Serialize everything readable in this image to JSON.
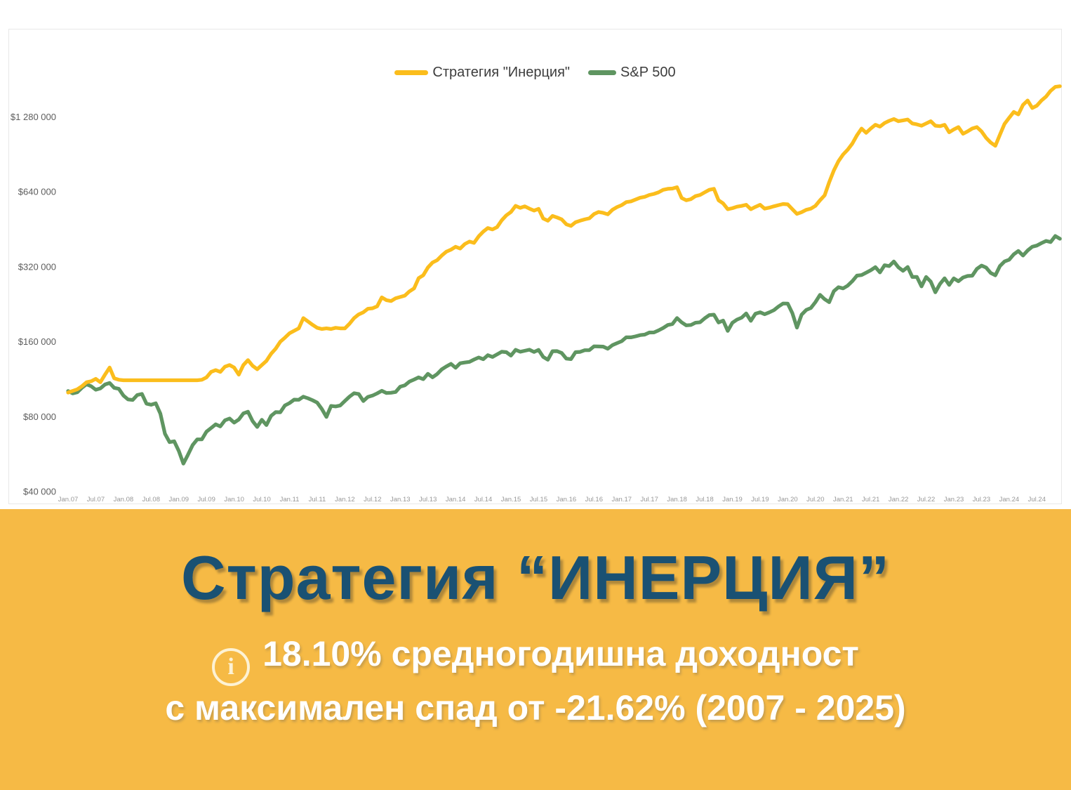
{
  "colors": {
    "banner_background": "#F6BA45",
    "title_color": "#1A5173",
    "subtitle_color": "#FFFFFF",
    "strategy_line": "#FBBD1C",
    "sp500_line": "#5F9561"
  },
  "banner": {
    "title": "Стратегия “ИНЕРЦИЯ”",
    "subtitle_line1": "18.10% средногодишна доходност",
    "subtitle_line2": "с максимален спад от -21.62% (2007 - 2025)",
    "info_icon_glyph": "i"
  },
  "chart_data": {
    "type": "line",
    "frequency": "monthly",
    "x_start": "Jan 2007",
    "x_end": "Dec 2024",
    "y_scale": "log2",
    "ylim": [
      40000,
      1800000
    ],
    "grid": false,
    "legend_position": "top-center",
    "y_ticks": {
      "labels": [
        "$1 280 000",
        "$640 000",
        "$320 000",
        "$160 000",
        "$80 000",
        "$40 000"
      ],
      "values": [
        1280000,
        640000,
        320000,
        160000,
        80000,
        40000
      ]
    },
    "x_ticks": [
      "Jan.07",
      "Jul.07",
      "Jan.08",
      "Jul.08",
      "Jan.09",
      "Jul.09",
      "Jan.10",
      "Jul.10",
      "Jan.11",
      "Jul.11",
      "Jan.12",
      "Jul.12",
      "Jan.13",
      "Jul.13",
      "Jan.14",
      "Jul.14",
      "Jan.15",
      "Jul.15",
      "Jan.16",
      "Jul.16",
      "Jan.17",
      "Jul.17",
      "Jan.18",
      "Jul.18",
      "Jan.19",
      "Jul.19",
      "Jan.20",
      "Jul.20",
      "Jan.21",
      "Jul.21",
      "Jan.22",
      "Jul.22",
      "Jan.23",
      "Jul.23",
      "Jan.24",
      "Jul.24"
    ],
    "series": [
      {
        "name": "Стратегия \"Инерция\"",
        "color": "#FBBD1C",
        "values": [
          100000,
          101500,
          103000,
          106000,
          110000,
          111000,
          113500,
          110000,
          118000,
          126000,
          114000,
          112500,
          112000,
          112000,
          112000,
          112000,
          112000,
          112000,
          112000,
          112000,
          112000,
          112000,
          112000,
          112000,
          112000,
          112000,
          112000,
          112000,
          112000,
          112500,
          115000,
          121000,
          123000,
          121000,
          127000,
          129000,
          126000,
          118000,
          129000,
          135000,
          128000,
          124000,
          129000,
          134000,
          143000,
          150000,
          160000,
          166000,
          173000,
          177000,
          181000,
          199000,
          193000,
          187000,
          182000,
          180000,
          181000,
          180000,
          182000,
          181000,
          181000,
          189000,
          199000,
          206000,
          210000,
          217000,
          218000,
          222000,
          241000,
          235000,
          233000,
          239000,
          242000,
          245000,
          255000,
          262000,
          288000,
          296000,
          318000,
          333000,
          340000,
          355000,
          368000,
          375000,
          385000,
          379000,
          395000,
          404000,
          399000,
          424000,
          443000,
          458000,
          452000,
          462000,
          492000,
          515000,
          531000,
          562000,
          552000,
          560000,
          548000,
          538000,
          547000,
          500000,
          490000,
          512000,
          505000,
          496000,
          474000,
          467000,
          483000,
          490000,
          496000,
          501000,
          521000,
          531000,
          527000,
          520000,
          542000,
          556000,
          566000,
          582000,
          586000,
          596000,
          606000,
          611000,
          622000,
          628000,
          637000,
          652000,
          658000,
          660000,
          668000,
          605000,
          592000,
          598000,
          615000,
          622000,
          637000,
          652000,
          658000,
          592000,
          575000,
          545000,
          550000,
          558000,
          562000,
          568000,
          545000,
          557000,
          568000,
          548000,
          553000,
          560000,
          566000,
          572000,
          570000,
          545000,
          522000,
          530000,
          542000,
          548000,
          562000,
          592000,
          620000,
          700000,
          780000,
          850000,
          904000,
          945000,
          1000000,
          1080000,
          1149000,
          1105000,
          1150000,
          1190000,
          1170000,
          1210000,
          1235000,
          1255000,
          1230000,
          1240000,
          1250000,
          1205000,
          1195000,
          1180000,
          1205000,
          1230000,
          1180000,
          1175000,
          1190000,
          1110000,
          1140000,
          1165000,
          1095000,
          1120000,
          1150000,
          1165000,
          1120000,
          1055000,
          1010000,
          980000,
          1085000,
          1200000,
          1270000,
          1340000,
          1310000,
          1430000,
          1490000,
          1390000,
          1420000,
          1490000,
          1545000,
          1630000,
          1690000,
          1700000
        ]
      },
      {
        "name": "S&P 500",
        "color": "#5F9561",
        "values": [
          101400,
          99200,
          100200,
          104500,
          107900,
          106000,
          102600,
          103900,
          107700,
          109200,
          104400,
          103500,
          97200,
          93800,
          93300,
          97700,
          98700,
          90200,
          89300,
          90500,
          82200,
          68300,
          63200,
          63700,
          58200,
          51800,
          56300,
          61500,
          64800,
          64800,
          69600,
          72000,
          74500,
          73100,
          77300,
          78600,
          75700,
          77900,
          82400,
          83700,
          76800,
          72700,
          77700,
          74000,
          80500,
          83400,
          83300,
          88700,
          90700,
          93600,
          93500,
          96200,
          94800,
          93100,
          91100,
          85900,
          79800,
          88300,
          87900,
          88700,
          92500,
          96300,
          99300,
          98600,
          92400,
          96000,
          97200,
          99200,
          101600,
          99600,
          99800,
          100500,
          105600,
          106800,
          110600,
          112700,
          115000,
          113200,
          118900,
          115100,
          118600,
          123900,
          127300,
          130300,
          125700,
          131100,
          132000,
          132800,
          135700,
          138200,
          136100,
          141200,
          139000,
          142300,
          145800,
          145200,
          140700,
          148400,
          145800,
          147100,
          148600,
          145500,
          148300,
          139000,
          135400,
          146600,
          146700,
          144100,
          136800,
          136200,
          145200,
          145600,
          147900,
          148000,
          153300,
          153100,
          152900,
          149900,
          155000,
          157900,
          160700,
          166700,
          166600,
          168100,
          170100,
          170800,
          174200,
          174300,
          177600,
          181600,
          186700,
          188500,
          199100,
          191400,
          186200,
          186700,
          190700,
          191600,
          198600,
          204600,
          205500,
          191200,
          194600,
          176800,
          190700,
          196300,
          199800,
          207700,
          194000,
          207400,
          210100,
          206300,
          209900,
          214200,
          221500,
          227800,
          227500,
          208300,
          182300,
          205300,
          214600,
          218600,
          230600,
          246800,
          237100,
          230600,
          255400,
          264800,
          261900,
          268700,
          280100,
          294800,
          296400,
          303000,
          309900,
          318900,
          303700,
          324700,
          322000,
          336000,
          318400,
          308400,
          319400,
          291300,
          291300,
          266900,
          291200,
          278900,
          252800,
          273000,
          287700,
          270700,
          287500,
          279900,
          289700,
          293900,
          294700,
          313800,
          323600,
          317800,
          302300,
          295700,
          322100,
          336300,
          341700,
          359300,
          370400,
          355100,
          372100,
          385000,
          389300,
          398200,
          406300,
          402200,
          425300,
          414700
        ]
      }
    ]
  }
}
